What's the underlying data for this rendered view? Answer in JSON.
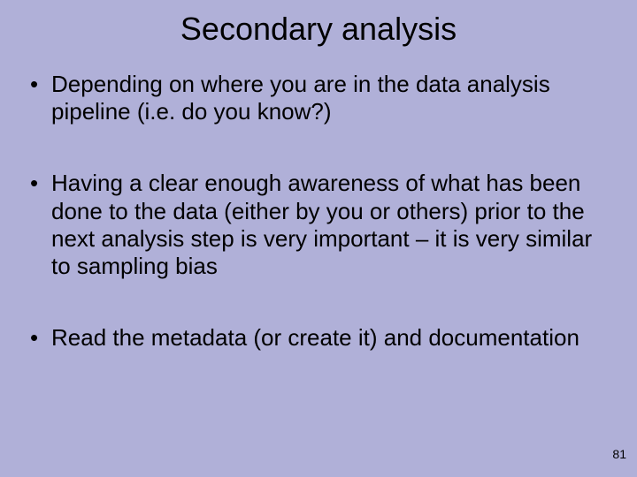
{
  "slide": {
    "title": "Secondary analysis",
    "bullets": [
      "Depending on where you are in the data analysis pipeline (i.e. do you know?)",
      "Having a clear enough awareness of what has been done to the data (either by you or others) prior to the next analysis step is very important – it is very similar to sampling bias",
      "Read the metadata (or create it) and documentation"
    ],
    "page_number": "81",
    "background_color": "#b0b0d8",
    "text_color": "#000000",
    "title_fontsize": 36,
    "body_fontsize": 26,
    "pagenumber_fontsize": 14
  }
}
